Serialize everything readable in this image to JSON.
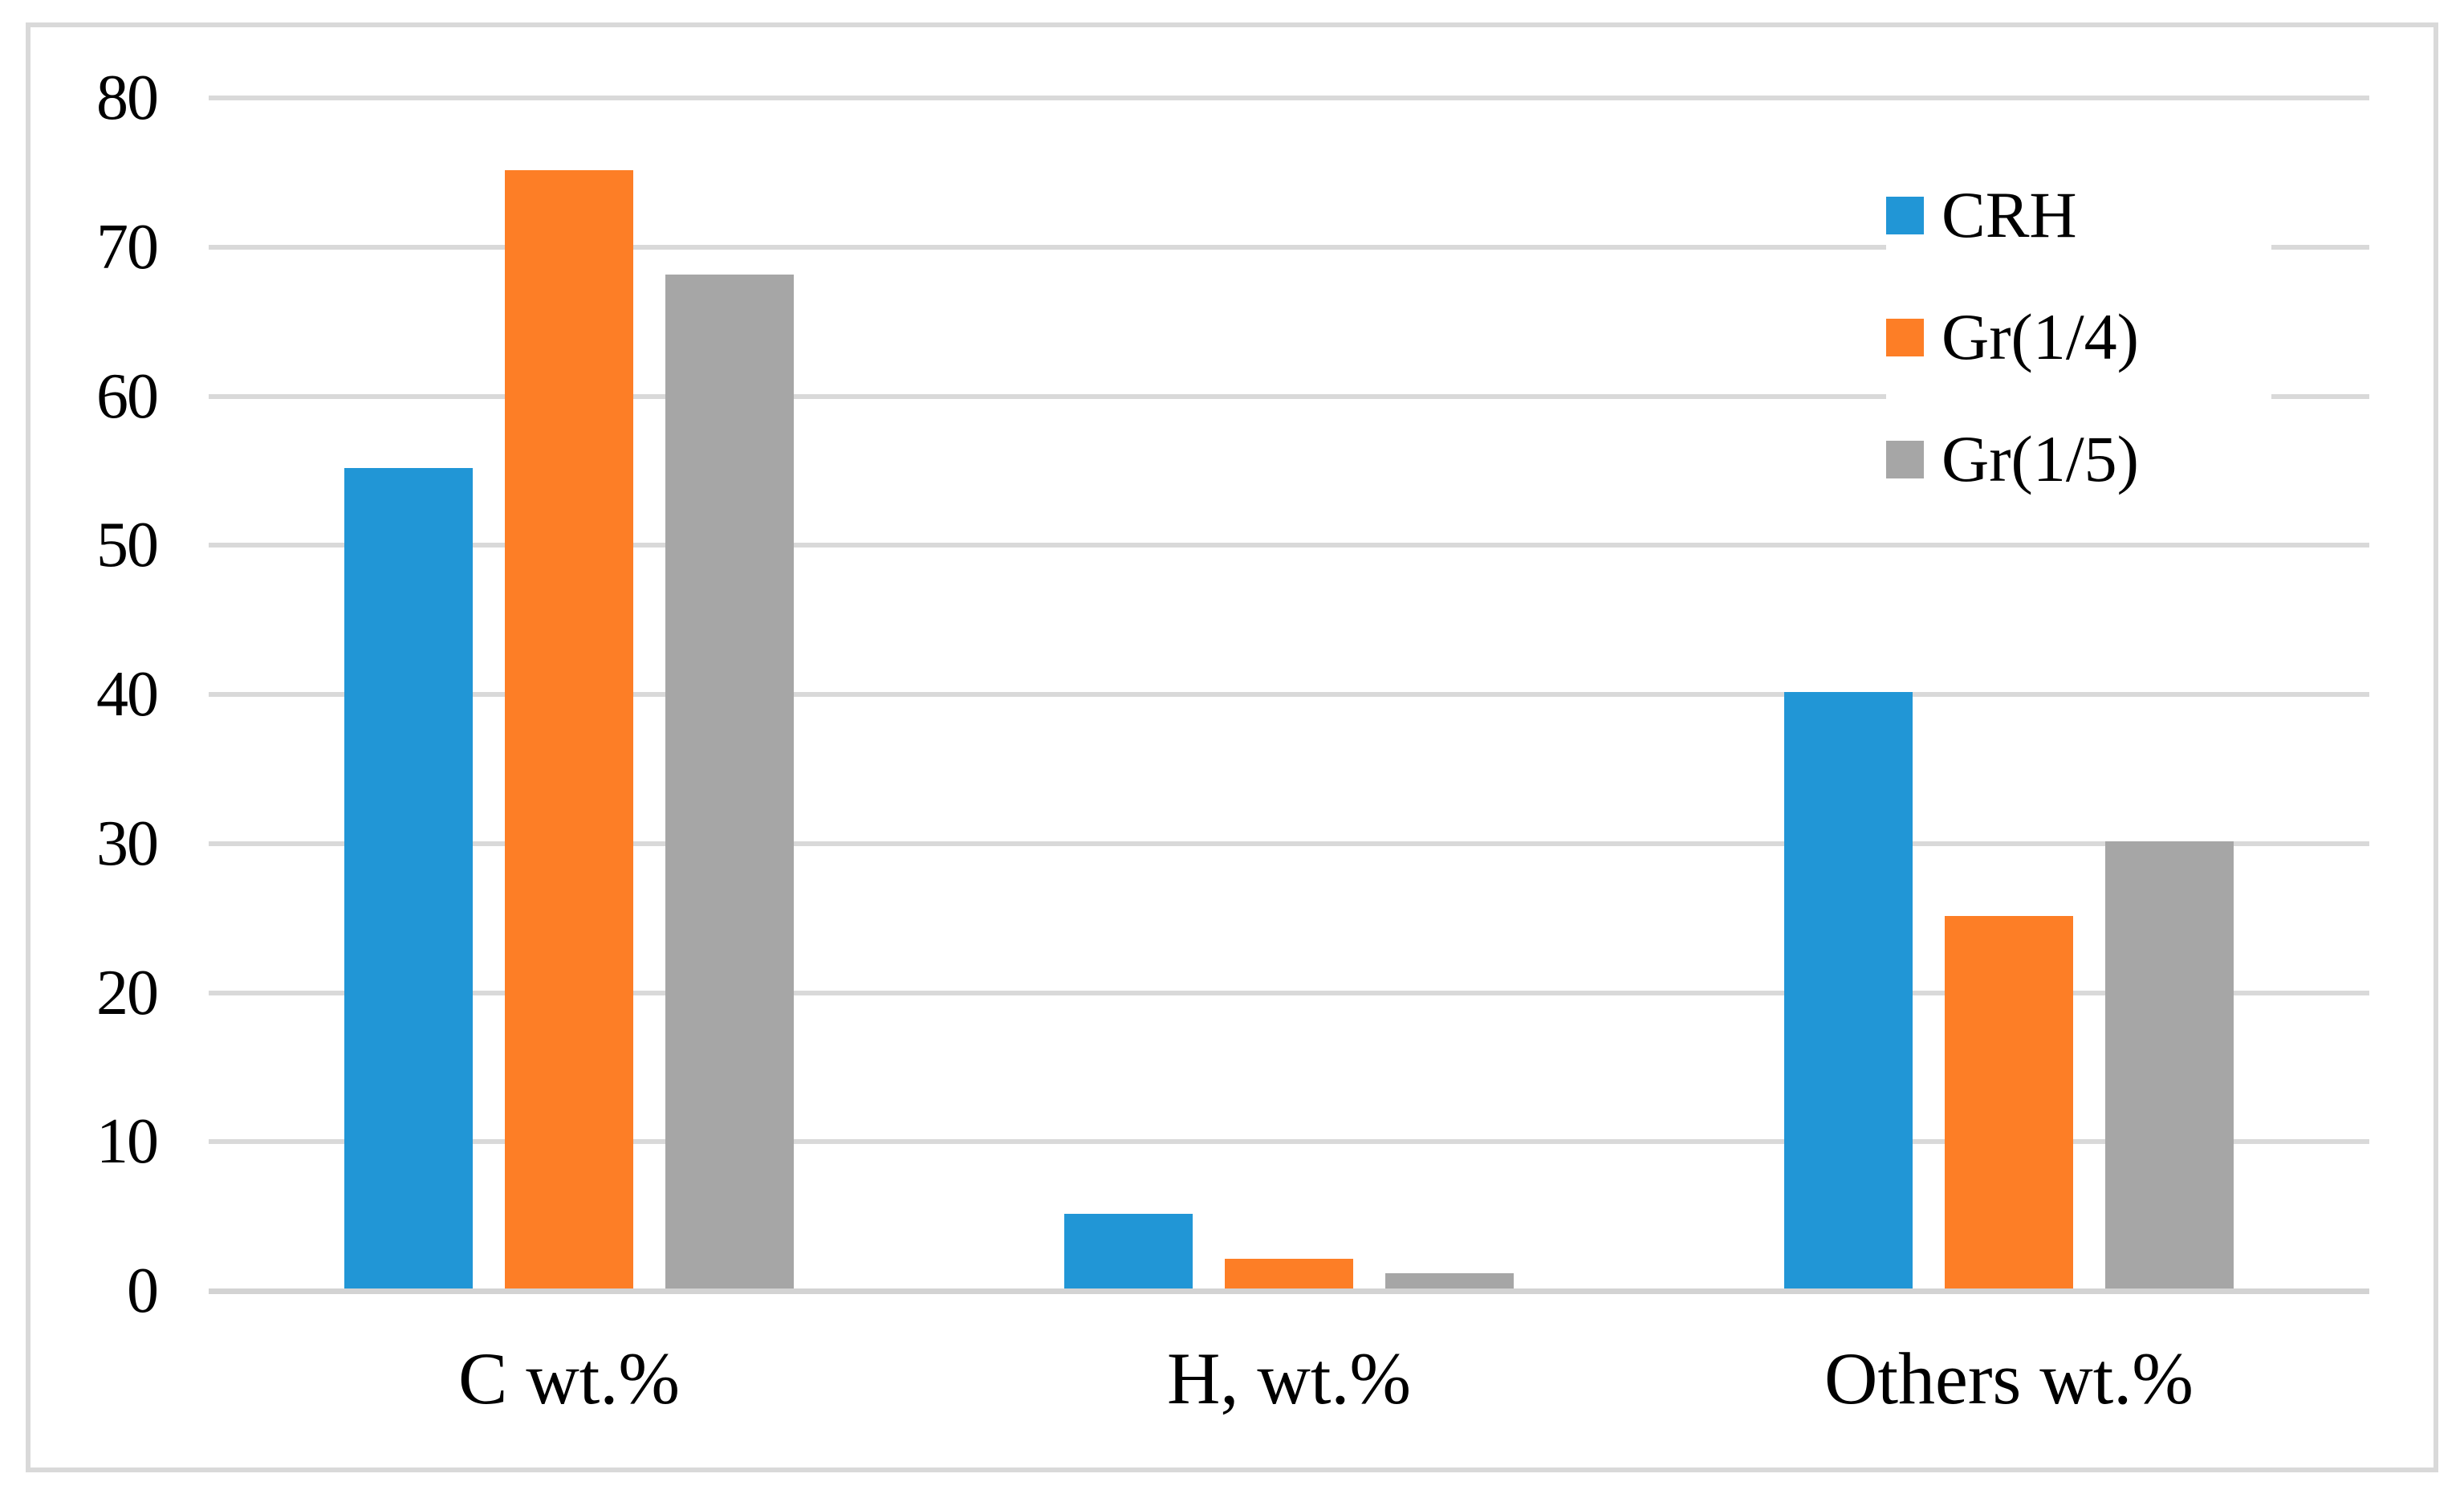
{
  "frame": {
    "background": "#FFFFFF",
    "border_color": "#D9D9D9"
  },
  "axes": {
    "y_tick_labels": [
      "0",
      "10",
      "20",
      "30",
      "40",
      "50",
      "60",
      "70",
      "80"
    ],
    "gridline_color": "#D9D9D9",
    "zero_line_color": "#D3D3D3",
    "text_color": "#000000"
  },
  "legend": {
    "items": [
      {
        "label": "CRH",
        "color": "#2196D6"
      },
      {
        "label": "Gr(1/4)",
        "color": "#FD7E26"
      },
      {
        "label": "Gr(1/5)",
        "color": "#A6A6A6"
      }
    ]
  },
  "chart_data": {
    "type": "bar",
    "title": "",
    "xlabel": "",
    "ylabel": "",
    "categories": [
      "C wt.%",
      "H, wt.%",
      "Others wt.%"
    ],
    "series": [
      {
        "name": "CRH",
        "color": "#2196D6",
        "values": [
          55,
          5,
          40
        ]
      },
      {
        "name": "Gr(1/4)",
        "color": "#FD7E26",
        "values": [
          75,
          2,
          25
        ]
      },
      {
        "name": "Gr(1/5)",
        "color": "#A6A6A6",
        "values": [
          68,
          1,
          30
        ]
      }
    ],
    "ylim": [
      0,
      80
    ],
    "ytick_step": 10,
    "grid": true,
    "gridlines_horizontal_only": true,
    "legend_position": "top-right"
  }
}
